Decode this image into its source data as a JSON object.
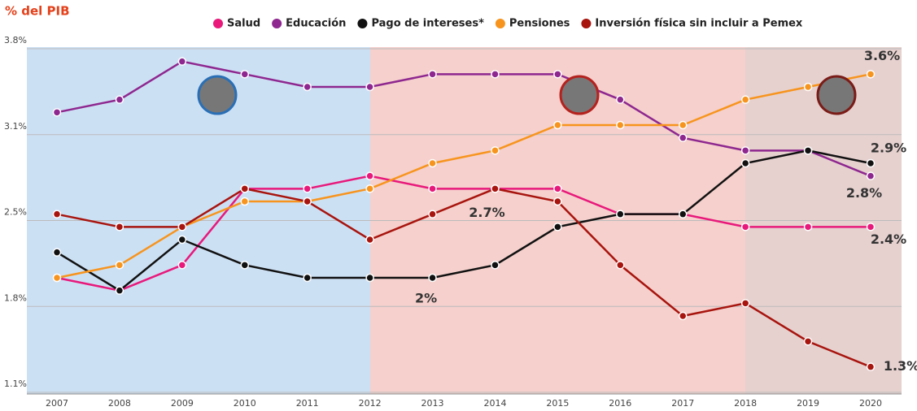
{
  "chart_data": {
    "type": "line",
    "y_label": "% del PIB",
    "categories": [
      "2007",
      "2008",
      "2009",
      "2010",
      "2011",
      "2012",
      "2013",
      "2014",
      "2015",
      "2016",
      "2017",
      "2018",
      "2019",
      "2020"
    ],
    "ylim": [
      1.1,
      3.8
    ],
    "yticks": [
      {
        "value": 1.1,
        "label": "1.1%"
      },
      {
        "value": 1.775,
        "label": "1.8%"
      },
      {
        "value": 2.45,
        "label": "2.5%"
      },
      {
        "value": 3.125,
        "label": "3.1%"
      },
      {
        "value": 3.8,
        "label": "3.8%"
      }
    ],
    "grid": true,
    "series": [
      {
        "name": "Salud",
        "color": "#e8197b",
        "values": [
          2.0,
          1.9,
          2.1,
          2.7,
          2.7,
          2.8,
          2.7,
          2.7,
          2.7,
          2.5,
          2.5,
          2.4,
          2.4,
          2.4
        ],
        "value_labels": [
          null,
          null,
          null,
          null,
          null,
          null,
          null,
          null,
          null,
          null,
          null,
          null,
          null,
          "2.4%"
        ]
      },
      {
        "name": "Educación",
        "color": "#8e278f",
        "values": [
          3.3,
          3.4,
          3.7,
          3.6,
          3.5,
          3.5,
          3.6,
          3.6,
          3.6,
          3.4,
          3.1,
          3.0,
          3.0,
          2.8
        ],
        "value_labels": [
          null,
          null,
          null,
          null,
          null,
          null,
          null,
          null,
          null,
          null,
          null,
          null,
          null,
          "2.8%"
        ]
      },
      {
        "name": "Pago de intereses*",
        "color": "#111111",
        "values": [
          2.2,
          1.9,
          2.3,
          2.1,
          2.0,
          2.0,
          2.0,
          2.1,
          2.4,
          2.5,
          2.5,
          2.9,
          3.0,
          2.9
        ],
        "value_labels": [
          null,
          null,
          null,
          null,
          null,
          null,
          "2%",
          null,
          null,
          null,
          null,
          null,
          null,
          "2.9%"
        ]
      },
      {
        "name": "Pensiones",
        "color": "#f7941d",
        "values": [
          2.0,
          2.1,
          2.4,
          2.6,
          2.6,
          2.7,
          2.9,
          3.0,
          3.2,
          3.2,
          3.2,
          3.4,
          3.5,
          3.6
        ],
        "value_labels": [
          null,
          null,
          null,
          null,
          null,
          null,
          null,
          null,
          null,
          null,
          null,
          null,
          null,
          "3.6%"
        ]
      },
      {
        "name": "Inversión física sin incluir a Pemex",
        "color": "#a8140e",
        "values": [
          2.5,
          2.4,
          2.4,
          2.7,
          2.6,
          2.3,
          2.5,
          2.7,
          2.6,
          2.1,
          1.7,
          1.8,
          1.5,
          1.3
        ],
        "value_labels": [
          null,
          null,
          null,
          null,
          null,
          null,
          null,
          "2.7%",
          null,
          null,
          null,
          null,
          null,
          "1.3%"
        ]
      }
    ]
  }
}
